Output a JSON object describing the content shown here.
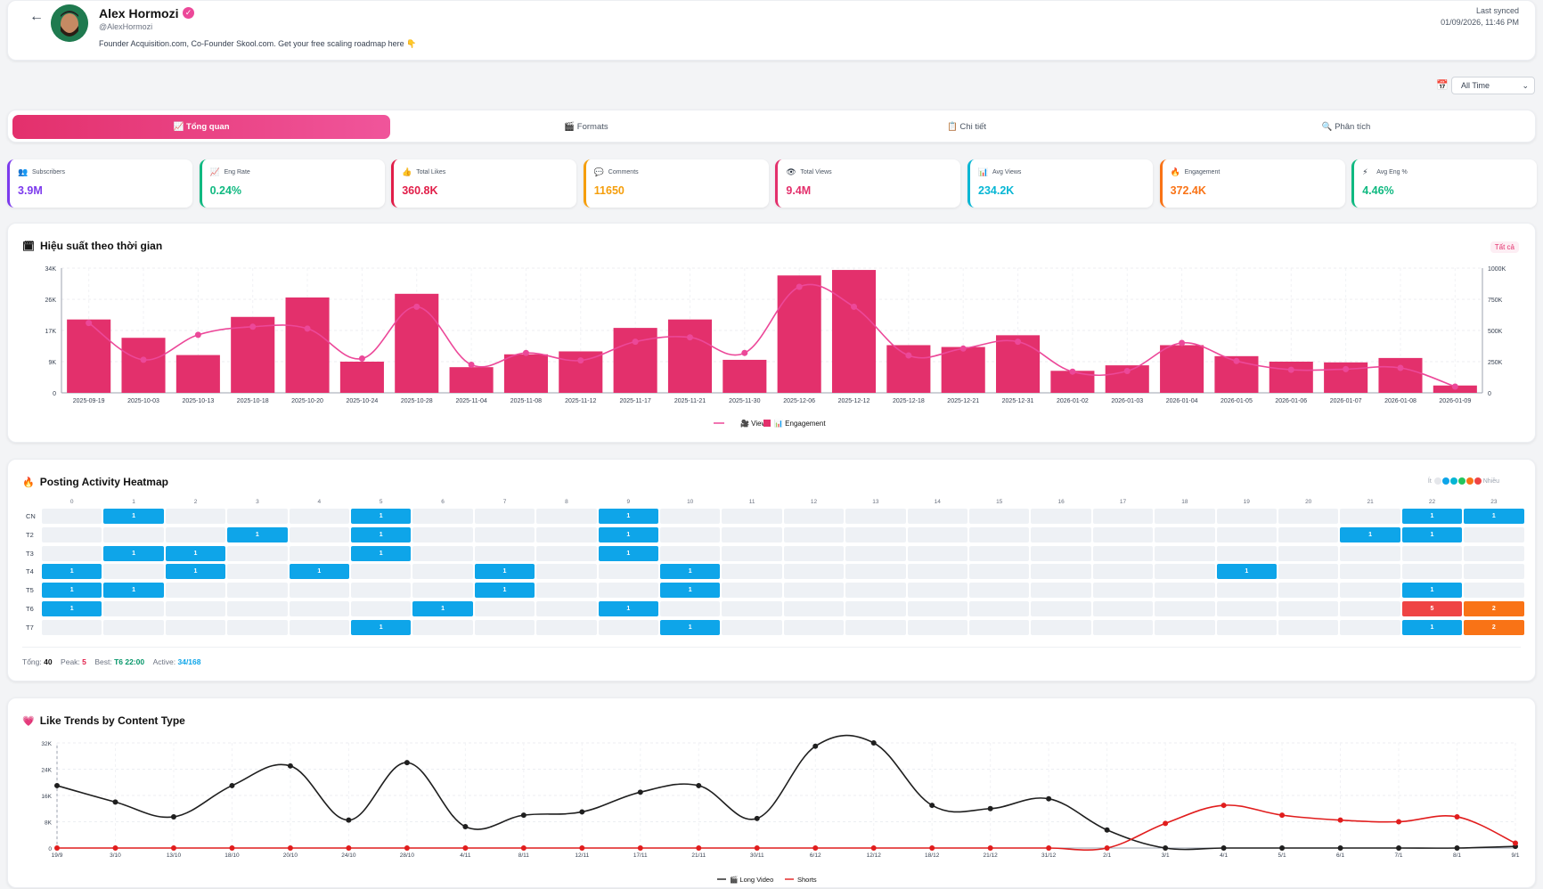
{
  "profile": {
    "name": "Alex Hormozi",
    "handle": "@AlexHormozi",
    "bio": "Founder Acquisition.com, Co-Founder Skool.com. Get your free scaling roadmap here 👇",
    "sync_label": "Last synced",
    "sync_time": "01/09/2026, 11:46 PM"
  },
  "filter": {
    "range": "All Time"
  },
  "tabs": [
    {
      "label": "📈 Tổng quan"
    },
    {
      "label": "🎬 Formats"
    },
    {
      "label": "📋 Chi tiết"
    },
    {
      "label": "🔍 Phân tích"
    }
  ],
  "stats": [
    {
      "icon": "👥",
      "label": "Subscribers",
      "value": "3.9M",
      "color": "#7c3aed"
    },
    {
      "icon": "📈",
      "label": "Eng Rate",
      "value": "0.24%",
      "color": "#10b981"
    },
    {
      "icon": "👍",
      "label": "Total Likes",
      "value": "360.8K",
      "color": "#e11d48"
    },
    {
      "icon": "💬",
      "label": "Comments",
      "value": "11650",
      "color": "#f59e0b"
    },
    {
      "icon": "👁",
      "label": "Total Views",
      "value": "9.4M",
      "color": "#e3306c"
    },
    {
      "icon": "📊",
      "label": "Avg Views",
      "value": "234.2K",
      "color": "#06b6d4"
    },
    {
      "icon": "🔥",
      "label": "Engagement",
      "value": "372.4K",
      "color": "#f97316"
    },
    {
      "icon": "⚡",
      "label": "Avg Eng %",
      "value": "4.46%",
      "color": "#10b981"
    }
  ],
  "perf": {
    "title": "Hiệu suất theo thời gian",
    "all_label": "Tất cả"
  },
  "heat": {
    "title": "Posting Activity Heatmap",
    "less": "Ít",
    "more": "Nhiều",
    "rows": [
      "CN",
      "T2",
      "T3",
      "T4",
      "T5",
      "T6",
      "T7"
    ],
    "footer": {
      "total_label": "Tổng:",
      "total": "40",
      "peak_label": "Peak:",
      "peak": "5",
      "best_label": "Best:",
      "best": "T6 22:00",
      "active_label": "Active:",
      "active": "34/168"
    },
    "cells": [
      [
        0,
        1,
        1
      ],
      [
        0,
        5,
        1
      ],
      [
        0,
        9,
        1
      ],
      [
        0,
        22,
        1
      ],
      [
        0,
        23,
        1
      ],
      [
        1,
        3,
        1
      ],
      [
        1,
        5,
        1
      ],
      [
        1,
        9,
        1
      ],
      [
        1,
        21,
        1
      ],
      [
        1,
        22,
        1
      ],
      [
        2,
        1,
        1
      ],
      [
        2,
        2,
        1
      ],
      [
        2,
        5,
        1
      ],
      [
        2,
        9,
        1
      ],
      [
        3,
        0,
        1
      ],
      [
        3,
        2,
        1
      ],
      [
        3,
        4,
        1
      ],
      [
        3,
        7,
        1
      ],
      [
        3,
        10,
        1
      ],
      [
        3,
        19,
        1
      ],
      [
        4,
        0,
        1
      ],
      [
        4,
        1,
        1
      ],
      [
        4,
        7,
        1
      ],
      [
        4,
        10,
        1
      ],
      [
        4,
        22,
        1
      ],
      [
        5,
        0,
        1
      ],
      [
        5,
        6,
        1
      ],
      [
        5,
        9,
        1
      ],
      [
        5,
        22,
        5
      ],
      [
        5,
        23,
        2
      ],
      [
        6,
        5,
        1
      ],
      [
        6,
        10,
        1
      ],
      [
        6,
        22,
        1
      ],
      [
        6,
        23,
        2
      ]
    ]
  },
  "trend": {
    "title": "Like Trends by Content Type"
  },
  "chart_data": [
    {
      "type": "bar",
      "title": "Hiệu suất theo thời gian",
      "categories": [
        "2025-09-19",
        "2025-10-03",
        "2025-10-13",
        "2025-10-18",
        "2025-10-20",
        "2025-10-24",
        "2025-10-28",
        "2025-11-04",
        "2025-11-08",
        "2025-11-12",
        "2025-11-17",
        "2025-11-21",
        "2025-11-30",
        "2025-12-06",
        "2025-12-12",
        "2025-12-18",
        "2025-12-21",
        "2025-12-31",
        "2026-01-02",
        "2026-01-03",
        "2026-01-04",
        "2026-01-05",
        "2026-01-06",
        "2026-01-07",
        "2026-01-08",
        "2026-01-09"
      ],
      "y_ticks": [
        "0",
        "9K",
        "17K",
        "26K",
        "34K"
      ],
      "y2_ticks": [
        "0",
        "250K",
        "500K",
        "750K",
        "1000K"
      ],
      "ylim": [
        0,
        34000
      ],
      "y2lim": [
        0,
        1000000
      ],
      "series": [
        {
          "name": "Engagement",
          "type": "bar",
          "axis": "left",
          "values": [
            20000,
            15000,
            10300,
            20700,
            26000,
            8500,
            27000,
            7000,
            10500,
            11300,
            17700,
            20000,
            9000,
            32000,
            33500,
            13000,
            12500,
            15700,
            6000,
            7500,
            13000,
            10000,
            8500,
            8300,
            9500,
            2000
          ]
        },
        {
          "name": "Views",
          "type": "line",
          "axis": "right",
          "values": [
            560000,
            265000,
            465000,
            530000,
            515000,
            275000,
            690000,
            225000,
            320000,
            260000,
            410000,
            445000,
            320000,
            850000,
            690000,
            300000,
            355000,
            410000,
            170000,
            175000,
            400000,
            255000,
            185000,
            190000,
            200000,
            50000
          ]
        }
      ],
      "legend": [
        "Views",
        "Engagement"
      ]
    },
    {
      "type": "line",
      "title": "Like Trends by Content Type",
      "categories": [
        "19/9",
        "3/10",
        "13/10",
        "18/10",
        "20/10",
        "24/10",
        "28/10",
        "4/11",
        "8/11",
        "12/11",
        "17/11",
        "21/11",
        "30/11",
        "6/12",
        "12/12",
        "18/12",
        "21/12",
        "31/12",
        "2/1",
        "3/1",
        "4/1",
        "5/1",
        "6/1",
        "7/1",
        "8/1",
        "9/1"
      ],
      "y_ticks": [
        "0",
        "8K",
        "16K",
        "24K",
        "32K"
      ],
      "ylim": [
        0,
        32000
      ],
      "series": [
        {
          "name": "Long Video",
          "color": "#1f1f1f",
          "values": [
            19000,
            14000,
            9500,
            19000,
            25000,
            8500,
            26000,
            6500,
            10000,
            11000,
            17000,
            19000,
            9000,
            31000,
            32000,
            13000,
            12000,
            15000,
            5500,
            0,
            0,
            0,
            0,
            0,
            0,
            500
          ]
        },
        {
          "name": "Shorts",
          "color": "#e11d1d",
          "values": [
            0,
            0,
            0,
            0,
            0,
            0,
            0,
            0,
            0,
            0,
            0,
            0,
            0,
            0,
            0,
            0,
            0,
            0,
            0,
            7500,
            13000,
            10000,
            8500,
            8000,
            9500,
            1500
          ]
        }
      ],
      "legend": [
        "Long Video",
        "Shorts"
      ]
    }
  ]
}
